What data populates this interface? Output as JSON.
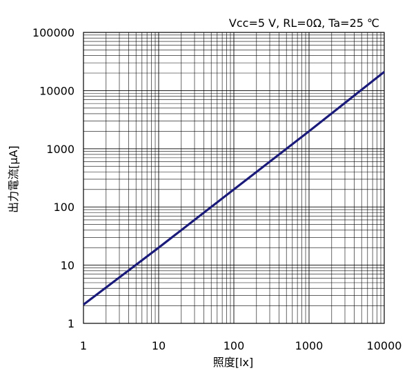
{
  "chart_data": {
    "type": "line",
    "title": "",
    "annotation": "Vcc=5 V, RL=0Ω, Ta=25 ℃",
    "xlabel": "照度[lx]",
    "ylabel": "出力電流[μA]",
    "x_scale": "log",
    "y_scale": "log",
    "xlim": [
      1,
      10000
    ],
    "ylim": [
      1,
      100000
    ],
    "grid": true,
    "legend": "none",
    "x_ticks": [
      "1",
      "10",
      "100",
      "1000",
      "10000"
    ],
    "y_ticks": [
      "1",
      "10",
      "100",
      "1000",
      "10000",
      "100000"
    ],
    "series": [
      {
        "color": "#1a1a7a",
        "x": [
          1,
          10,
          100,
          1000,
          10000
        ],
        "y": [
          2.1,
          20,
          200,
          2000,
          21000
        ]
      }
    ]
  }
}
